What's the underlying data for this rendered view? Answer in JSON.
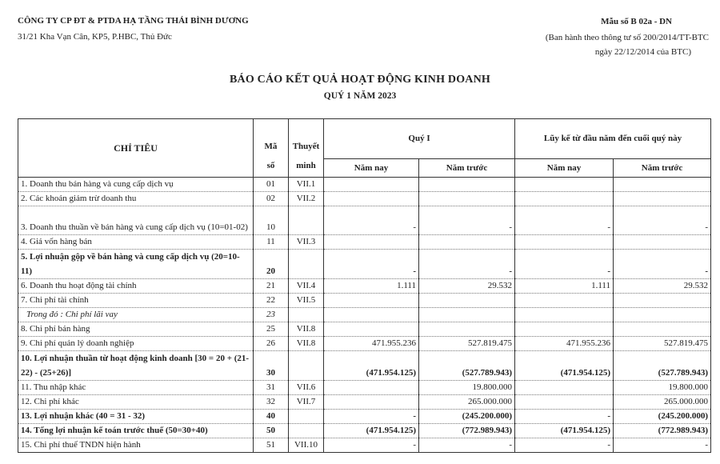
{
  "header": {
    "company": "CÔNG TY CP ĐT & PTDA HẠ TẦNG THÁI BÌNH DƯƠNG",
    "address": "31/21 Kha Vạn Cân, KP5, P.HBC, Thủ Đức",
    "form_no": "Mẫu số B 02a - DN",
    "issued_by": "(Ban hành theo thông tư số 200/2014/TT-BTC",
    "issued_date": "ngày 22/12/2014 của BTC)"
  },
  "title": "BÁO CÁO KẾT QUẢ HOẠT ĐỘNG KINH DOANH",
  "period": "QUÝ 1 NĂM 2023",
  "table": {
    "headers": {
      "item": "CHỈ TIÊU",
      "code_1": "Mã",
      "code_2": "số",
      "note_1": "Thuyết",
      "note_2": "minh",
      "quarter": "Quý I",
      "ytd": "Lũy kế từ đầu năm đến cuối quý này",
      "this_year": "Năm nay",
      "last_year": "Năm trước"
    },
    "rows": [
      {
        "item": "1. Doanh thu bán hàng và cung cấp dịch vụ",
        "code": "01",
        "note": "VII.1",
        "q_now": "",
        "q_prev": "",
        "y_now": "",
        "y_prev": ""
      },
      {
        "item": "2. Các khoản giảm trừ doanh thu",
        "code": "02",
        "note": "VII.2",
        "q_now": "",
        "q_prev": "",
        "y_now": "",
        "y_prev": ""
      },
      {
        "item": "3. Doanh thu thuần về bán hàng và cung cấp dịch vụ (10=01-02)",
        "code": "10",
        "note": "",
        "q_now": "-",
        "q_prev": "-",
        "y_now": "-",
        "y_prev": "-"
      },
      {
        "item": "4. Giá vốn hàng bán",
        "code": "11",
        "note": "VII.3",
        "q_now": "",
        "q_prev": "",
        "y_now": "",
        "y_prev": ""
      },
      {
        "item": "5. Lợi nhuận gộp về bán hàng và cung cấp dịch vụ (20=10-11)",
        "code": "20",
        "note": "",
        "q_now": "-",
        "q_prev": "-",
        "y_now": "-",
        "y_prev": "-"
      },
      {
        "item": "6. Doanh thu hoạt động tài chính",
        "code": "21",
        "note": "VII.4",
        "q_now": "1.111",
        "q_prev": "29.532",
        "y_now": "1.111",
        "y_prev": "29.532"
      },
      {
        "item": "7. Chi phí tài chính",
        "code": "22",
        "note": "VII.5",
        "q_now": "",
        "q_prev": "",
        "y_now": "",
        "y_prev": ""
      },
      {
        "item": "Trong đó : Chi phí lãi vay",
        "code": "23",
        "note": "",
        "q_now": "",
        "q_prev": "",
        "y_now": "",
        "y_prev": ""
      },
      {
        "item": "8. Chi phí bán hàng",
        "code": "25",
        "note": "VII.8",
        "q_now": "",
        "q_prev": "",
        "y_now": "",
        "y_prev": ""
      },
      {
        "item": "9. Chi phí quản lý doanh nghiệp",
        "code": "26",
        "note": "VII.8",
        "q_now": "471.955.236",
        "q_prev": "527.819.475",
        "y_now": "471.955.236",
        "y_prev": "527.819.475"
      },
      {
        "item": "10. Lợi nhuận thuần từ hoạt động kinh doanh [30 = 20 + (21-22) - (25+26)]",
        "code": "30",
        "note": "",
        "q_now": "(471.954.125)",
        "q_prev": "(527.789.943)",
        "y_now": "(471.954.125)",
        "y_prev": "(527.789.943)"
      },
      {
        "item": "11. Thu nhập khác",
        "code": "31",
        "note": "VII.6",
        "q_now": "",
        "q_prev": "19.800.000",
        "y_now": "",
        "y_prev": "19.800.000"
      },
      {
        "item": "12. Chi phí khác",
        "code": "32",
        "note": "VII.7",
        "q_now": "",
        "q_prev": "265.000.000",
        "y_now": "",
        "y_prev": "265.000.000"
      },
      {
        "item": "13. Lợi nhuận khác (40 = 31 - 32)",
        "code": "40",
        "note": "",
        "q_now": "-",
        "q_prev": "(245.200.000)",
        "y_now": "-",
        "y_prev": "(245.200.000)"
      },
      {
        "item": "14. Tổng lợi nhuận kế toán trước thuế (50=30+40)",
        "code": "50",
        "note": "",
        "q_now": "(471.954.125)",
        "q_prev": "(772.989.943)",
        "y_now": "(471.954.125)",
        "y_prev": "(772.989.943)"
      },
      {
        "item": "15. Chi phí thuế TNDN hiện hành",
        "code": "51",
        "note": "VII.10",
        "q_now": "-",
        "q_prev": "-",
        "y_now": "-",
        "y_prev": "-"
      }
    ]
  }
}
